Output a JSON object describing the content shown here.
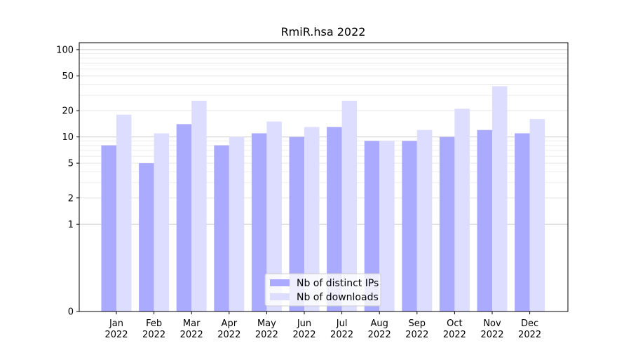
{
  "chart_data": {
    "type": "bar",
    "title": "RmiR.hsa 2022",
    "xlabel": "",
    "ylabel": "",
    "y_scale": "symlog",
    "ylim": [
      0,
      120
    ],
    "y_ticks": [
      0,
      1,
      2,
      5,
      10,
      20,
      50,
      100
    ],
    "grid": "horizontal",
    "legend_position": "bottom-center",
    "categories": [
      [
        "Jan",
        "2022"
      ],
      [
        "Feb",
        "2022"
      ],
      [
        "Mar",
        "2022"
      ],
      [
        "Apr",
        "2022"
      ],
      [
        "May",
        "2022"
      ],
      [
        "Jun",
        "2022"
      ],
      [
        "Jul",
        "2022"
      ],
      [
        "Aug",
        "2022"
      ],
      [
        "Sep",
        "2022"
      ],
      [
        "Oct",
        "2022"
      ],
      [
        "Nov",
        "2022"
      ],
      [
        "Dec",
        "2022"
      ]
    ],
    "series": [
      {
        "name": "Nb of distinct IPs",
        "color": "#aaaaff",
        "values": [
          8,
          5,
          14,
          8,
          11,
          10,
          13,
          9,
          9,
          10,
          12,
          11
        ]
      },
      {
        "name": "Nb of downloads",
        "color": "#ddddff",
        "values": [
          18,
          11,
          26,
          10,
          15,
          13,
          26,
          9,
          12,
          21,
          38,
          16
        ]
      }
    ]
  }
}
